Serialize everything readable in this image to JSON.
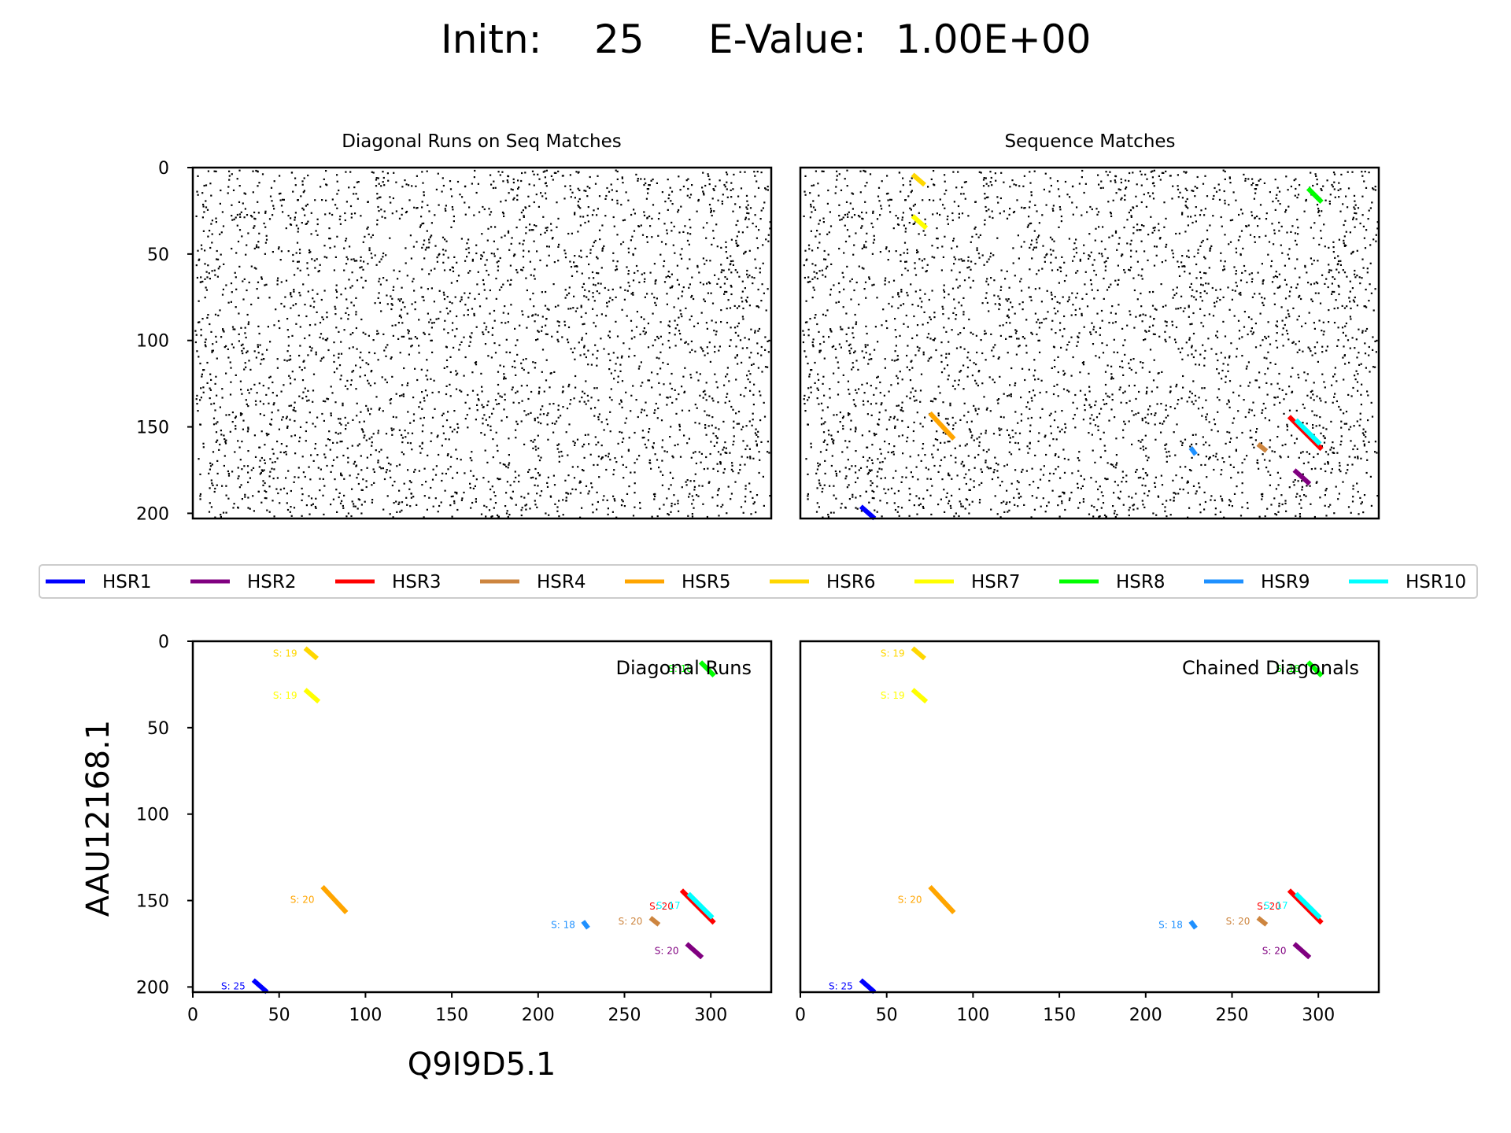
{
  "figure": {
    "title_initn_label": "Initn:",
    "title_initn_value": "25",
    "title_evalue_label": "E-Value:",
    "title_evalue_value": "1.00E+00"
  },
  "colors": {
    "HSR1": "#0000ff",
    "HSR2": "#800080",
    "HSR3": "#ff0000",
    "HSR4": "#cd853f",
    "HSR5": "#ffa500",
    "HSR6": "#ffd700",
    "HSR7": "#ffff00",
    "HSR8": "#00ff00",
    "HSR9": "#1e90ff",
    "HSR10": "#00ffff"
  },
  "legend": [
    "HSR1",
    "HSR2",
    "HSR3",
    "HSR4",
    "HSR5",
    "HSR6",
    "HSR7",
    "HSR8",
    "HSR9",
    "HSR10"
  ],
  "chart_data": [
    {
      "type": "scatter",
      "panel": "top-left",
      "title": "Diagonal Runs on Seq Matches",
      "xlim": [
        0,
        335
      ],
      "ylim": [
        0,
        203
      ],
      "y_inverted": true,
      "yticks": [
        0,
        50,
        100,
        150,
        200
      ],
      "xticks": [],
      "series": "random dot-plot of sequence matches (dense, ~3000 points)"
    },
    {
      "type": "line",
      "panel": "top-right",
      "title": "Sequence Matches",
      "xlim": [
        0,
        335
      ],
      "ylim": [
        0,
        203
      ],
      "y_inverted": true,
      "yticks": [],
      "xticks": [],
      "segments": [
        {
          "hsr": "HSR1",
          "x": [
            35,
            43
          ],
          "y": [
            196,
            203
          ]
        },
        {
          "hsr": "HSR2",
          "x": [
            286,
            295
          ],
          "y": [
            175,
            183
          ]
        },
        {
          "hsr": "HSR3",
          "x": [
            283,
            302
          ],
          "y": [
            144,
            163
          ]
        },
        {
          "hsr": "HSR4",
          "x": [
            265,
            270
          ],
          "y": [
            160,
            164
          ]
        },
        {
          "hsr": "HSR5",
          "x": [
            75,
            89
          ],
          "y": [
            142,
            157
          ]
        },
        {
          "hsr": "HSR6",
          "x": [
            65,
            72
          ],
          "y": [
            4,
            10
          ]
        },
        {
          "hsr": "HSR7",
          "x": [
            65,
            73
          ],
          "y": [
            28,
            35
          ]
        },
        {
          "hsr": "HSR8",
          "x": [
            294,
            302
          ],
          "y": [
            12,
            20
          ]
        },
        {
          "hsr": "HSR9",
          "x": [
            226,
            229
          ],
          "y": [
            162,
            166
          ]
        },
        {
          "hsr": "HSR10",
          "x": [
            287,
            301
          ],
          "y": [
            146,
            160
          ]
        }
      ]
    },
    {
      "type": "line",
      "panel": "bottom-left",
      "corner_label": "Diagonal Runs",
      "xlabel": "Q9I9D5.1",
      "ylabel": "AAU12168.1",
      "xlim": [
        0,
        335
      ],
      "ylim": [
        0,
        203
      ],
      "y_inverted": true,
      "xticks": [
        0,
        50,
        100,
        150,
        200,
        250,
        300
      ],
      "yticks": [
        0,
        50,
        100,
        150,
        200
      ],
      "segments": [
        {
          "hsr": "HSR1",
          "x": [
            35,
            43
          ],
          "y": [
            196,
            203
          ],
          "label": "S: 25"
        },
        {
          "hsr": "HSR2",
          "x": [
            286,
            295
          ],
          "y": [
            175,
            183
          ],
          "label": "S: 20"
        },
        {
          "hsr": "HSR3",
          "x": [
            283,
            302
          ],
          "y": [
            144,
            163
          ],
          "label": "S: 20"
        },
        {
          "hsr": "HSR4",
          "x": [
            265,
            270
          ],
          "y": [
            160,
            164
          ],
          "label": "S: 20"
        },
        {
          "hsr": "HSR5",
          "x": [
            75,
            89
          ],
          "y": [
            142,
            157
          ],
          "label": "S: 20"
        },
        {
          "hsr": "HSR6",
          "x": [
            65,
            72
          ],
          "y": [
            4,
            10
          ],
          "label": "S: 19"
        },
        {
          "hsr": "HSR7",
          "x": [
            65,
            73
          ],
          "y": [
            28,
            35
          ],
          "label": "S: 19"
        },
        {
          "hsr": "HSR8",
          "x": [
            294,
            302
          ],
          "y": [
            12,
            20
          ],
          "label": "S: 18"
        },
        {
          "hsr": "HSR9",
          "x": [
            226,
            229
          ],
          "y": [
            162,
            166
          ],
          "label": "S: 18"
        },
        {
          "hsr": "HSR10",
          "x": [
            287,
            301
          ],
          "y": [
            146,
            160
          ],
          "label": "S: 17"
        }
      ]
    },
    {
      "type": "line",
      "panel": "bottom-right",
      "corner_label": "Chained Diagonals",
      "xlim": [
        0,
        335
      ],
      "ylim": [
        0,
        203
      ],
      "y_inverted": true,
      "xticks": [
        0,
        50,
        100,
        150,
        200,
        250,
        300
      ],
      "yticks": [],
      "segments": [
        {
          "hsr": "HSR1",
          "x": [
            35,
            43
          ],
          "y": [
            196,
            203
          ],
          "label": "S: 25"
        },
        {
          "hsr": "HSR2",
          "x": [
            286,
            295
          ],
          "y": [
            175,
            183
          ],
          "label": "S: 20"
        },
        {
          "hsr": "HSR3",
          "x": [
            283,
            302
          ],
          "y": [
            144,
            163
          ],
          "label": "S: 20"
        },
        {
          "hsr": "HSR4",
          "x": [
            265,
            270
          ],
          "y": [
            160,
            164
          ],
          "label": "S: 20"
        },
        {
          "hsr": "HSR5",
          "x": [
            75,
            89
          ],
          "y": [
            142,
            157
          ],
          "label": "S: 20"
        },
        {
          "hsr": "HSR6",
          "x": [
            65,
            72
          ],
          "y": [
            4,
            10
          ],
          "label": "S: 19"
        },
        {
          "hsr": "HSR7",
          "x": [
            65,
            73
          ],
          "y": [
            28,
            35
          ],
          "label": "S: 19"
        },
        {
          "hsr": "HSR8",
          "x": [
            294,
            302
          ],
          "y": [
            12,
            20
          ],
          "label": "S: 18"
        },
        {
          "hsr": "HSR9",
          "x": [
            226,
            229
          ],
          "y": [
            162,
            166
          ],
          "label": "S: 18"
        },
        {
          "hsr": "HSR10",
          "x": [
            287,
            301
          ],
          "y": [
            146,
            160
          ],
          "label": "S: 17"
        }
      ]
    }
  ]
}
